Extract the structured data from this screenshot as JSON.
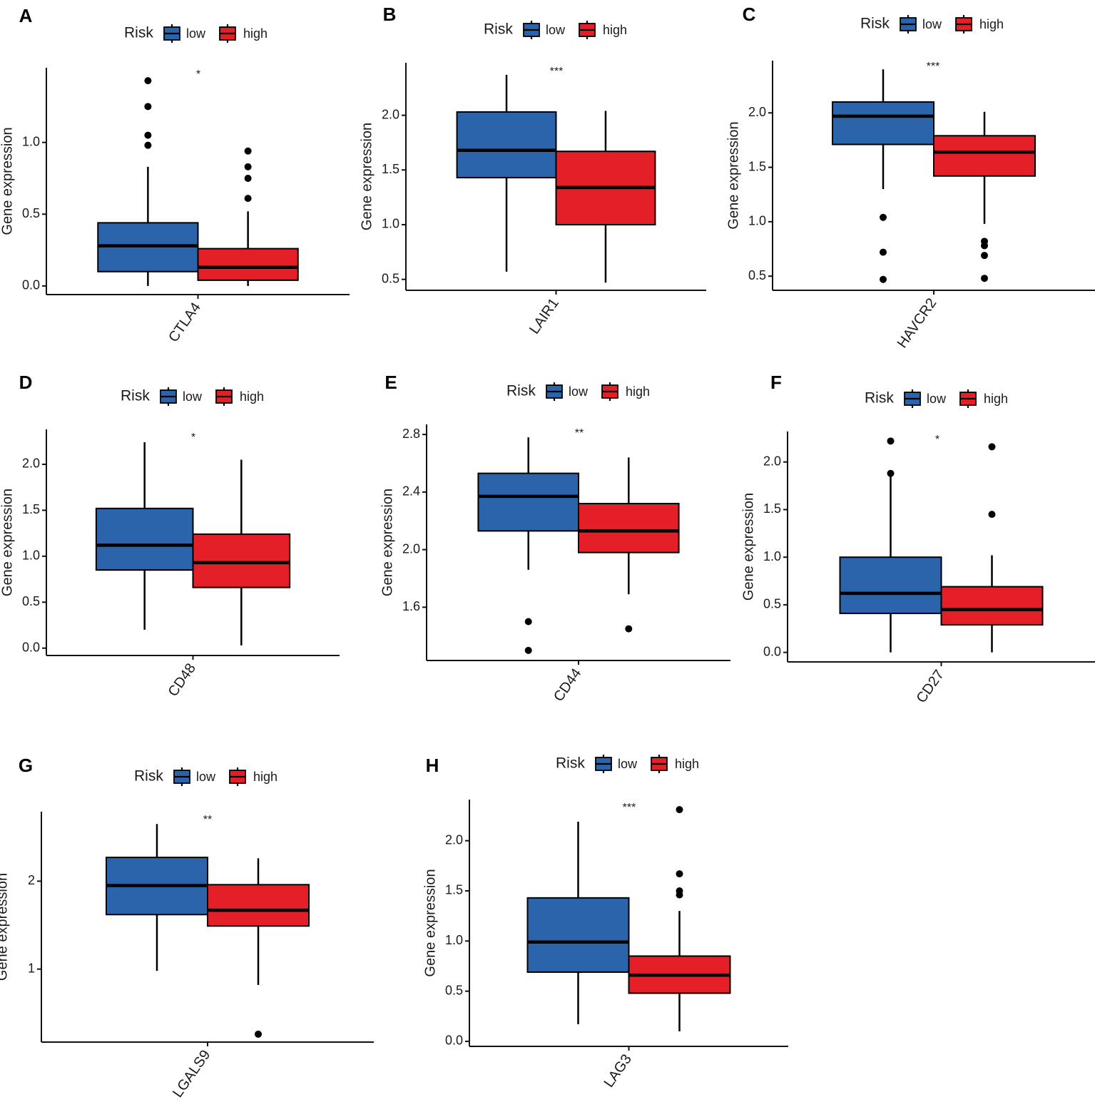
{
  "legend": {
    "title": "Risk",
    "groups": [
      "low",
      "high"
    ]
  },
  "colors": {
    "low": "#2C64AC",
    "high": "#E41F27",
    "line": "#000000"
  },
  "chart_data": [
    {
      "panel": "A",
      "type": "box",
      "title": "",
      "xlabel": "",
      "ylabel": "Gene expression",
      "categories": [
        "CTLA4"
      ],
      "ylim": [
        -0.06,
        1.52
      ],
      "yticks": [
        0.0,
        0.5,
        1.0
      ],
      "tick_decimals": 1,
      "significance": "*",
      "series": [
        {
          "name": "low",
          "min": 0.0,
          "q1": 0.1,
          "median": 0.28,
          "q3": 0.44,
          "max": 0.83,
          "outliers": [
            0.98,
            1.05,
            1.25,
            1.43
          ]
        },
        {
          "name": "high",
          "min": 0.0,
          "q1": 0.04,
          "median": 0.13,
          "q3": 0.26,
          "max": 0.52,
          "outliers": [
            0.61,
            0.75,
            0.83,
            0.94
          ]
        }
      ]
    },
    {
      "panel": "B",
      "type": "box",
      "title": "",
      "xlabel": "",
      "ylabel": "Gene expression",
      "categories": [
        "LAIR1"
      ],
      "ylim": [
        0.4,
        2.48
      ],
      "yticks": [
        0.5,
        1.0,
        1.5,
        2.0
      ],
      "tick_decimals": 1,
      "significance": "***",
      "series": [
        {
          "name": "low",
          "min": 0.57,
          "q1": 1.43,
          "median": 1.68,
          "q3": 2.03,
          "max": 2.37,
          "outliers": []
        },
        {
          "name": "high",
          "min": 0.47,
          "q1": 1.0,
          "median": 1.34,
          "q3": 1.67,
          "max": 2.04,
          "outliers": []
        }
      ]
    },
    {
      "panel": "C",
      "type": "box",
      "title": "",
      "xlabel": "",
      "ylabel": "Gene expression",
      "categories": [
        "HAVCR2"
      ],
      "ylim": [
        0.37,
        2.48
      ],
      "yticks": [
        0.5,
        1.0,
        1.5,
        2.0
      ],
      "tick_decimals": 1,
      "significance": "***",
      "series": [
        {
          "name": "low",
          "min": 1.3,
          "q1": 1.71,
          "median": 1.97,
          "q3": 2.1,
          "max": 2.4,
          "outliers": [
            0.47,
            0.72,
            1.04
          ]
        },
        {
          "name": "high",
          "min": 0.98,
          "q1": 1.42,
          "median": 1.64,
          "q3": 1.79,
          "max": 2.01,
          "outliers": [
            0.48,
            0.69,
            0.78,
            0.82
          ]
        }
      ]
    },
    {
      "panel": "D",
      "type": "box",
      "title": "",
      "xlabel": "",
      "ylabel": "Gene expression",
      "categories": [
        "CD48"
      ],
      "ylim": [
        -0.08,
        2.38
      ],
      "yticks": [
        0.0,
        0.5,
        1.0,
        1.5,
        2.0
      ],
      "tick_decimals": 1,
      "significance": "*",
      "series": [
        {
          "name": "low",
          "min": 0.2,
          "q1": 0.85,
          "median": 1.12,
          "q3": 1.52,
          "max": 2.24,
          "outliers": []
        },
        {
          "name": "high",
          "min": 0.03,
          "q1": 0.66,
          "median": 0.93,
          "q3": 1.24,
          "max": 2.05,
          "outliers": []
        }
      ]
    },
    {
      "panel": "E",
      "type": "box",
      "title": "",
      "xlabel": "",
      "ylabel": "Gene expression",
      "categories": [
        "CD44"
      ],
      "ylim": [
        1.23,
        2.87
      ],
      "yticks": [
        1.6,
        2.0,
        2.4,
        2.8
      ],
      "tick_decimals": 1,
      "significance": "**",
      "series": [
        {
          "name": "low",
          "min": 1.86,
          "q1": 2.13,
          "median": 2.37,
          "q3": 2.53,
          "max": 2.78,
          "outliers": [
            1.3,
            1.5
          ]
        },
        {
          "name": "high",
          "min": 1.69,
          "q1": 1.98,
          "median": 2.13,
          "q3": 2.32,
          "max": 2.64,
          "outliers": [
            1.45
          ]
        }
      ]
    },
    {
      "panel": "F",
      "type": "box",
      "title": "",
      "xlabel": "",
      "ylabel": "Gene expression",
      "categories": [
        "CD27"
      ],
      "ylim": [
        -0.1,
        2.32
      ],
      "yticks": [
        0.0,
        0.5,
        1.0,
        1.5,
        2.0
      ],
      "tick_decimals": 1,
      "significance": "*",
      "series": [
        {
          "name": "low",
          "min": 0.0,
          "q1": 0.41,
          "median": 0.62,
          "q3": 1.0,
          "max": 1.85,
          "outliers": [
            1.88,
            2.22
          ]
        },
        {
          "name": "high",
          "min": 0.0,
          "q1": 0.29,
          "median": 0.45,
          "q3": 0.69,
          "max": 1.02,
          "outliers": [
            1.45,
            2.16
          ]
        }
      ]
    },
    {
      "panel": "G",
      "type": "box",
      "title": "",
      "xlabel": "",
      "ylabel": "Gene expression",
      "categories": [
        "LGALS9"
      ],
      "ylim": [
        0.17,
        2.79
      ],
      "yticks": [
        1,
        2
      ],
      "tick_decimals": 0,
      "significance": "**",
      "series": [
        {
          "name": "low",
          "min": 0.98,
          "q1": 1.62,
          "median": 1.95,
          "q3": 2.27,
          "max": 2.65,
          "outliers": []
        },
        {
          "name": "high",
          "min": 0.82,
          "q1": 1.49,
          "median": 1.67,
          "q3": 1.96,
          "max": 2.26,
          "outliers": [
            0.26
          ]
        }
      ]
    },
    {
      "panel": "H",
      "type": "box",
      "title": "",
      "xlabel": "",
      "ylabel": "Gene expression",
      "categories": [
        "LAG3"
      ],
      "ylim": [
        -0.05,
        2.41
      ],
      "yticks": [
        0.0,
        0.5,
        1.0,
        1.5,
        2.0
      ],
      "tick_decimals": 1,
      "significance": "***",
      "series": [
        {
          "name": "low",
          "min": 0.17,
          "q1": 0.69,
          "median": 0.99,
          "q3": 1.43,
          "max": 2.19,
          "outliers": []
        },
        {
          "name": "high",
          "min": 0.1,
          "q1": 0.48,
          "median": 0.66,
          "q3": 0.85,
          "max": 1.3,
          "outliers": [
            1.46,
            1.5,
            1.67,
            2.31
          ]
        }
      ]
    }
  ]
}
